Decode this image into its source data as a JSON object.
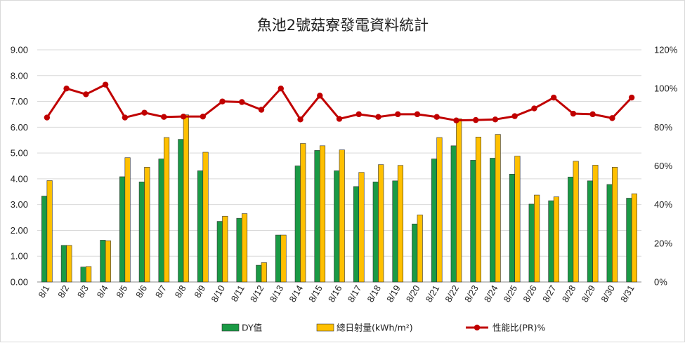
{
  "chart_data": {
    "type": "bar",
    "title": "魚池2號菇寮發電資料統計",
    "categories": [
      "8/1",
      "8/2",
      "8/3",
      "8/4",
      "8/5",
      "8/6",
      "8/7",
      "8/8",
      "8/9",
      "8/10",
      "8/11",
      "8/12",
      "8/13",
      "8/14",
      "8/15",
      "8/16",
      "8/17",
      "8/18",
      "8/19",
      "8/20",
      "8/21",
      "8/22",
      "8/23",
      "8/24",
      "8/25",
      "8/26",
      "8/27",
      "8/28",
      "8/29",
      "8/30",
      "8/31"
    ],
    "series": [
      {
        "name": "DY值",
        "type": "bar",
        "axis": "left",
        "color": "#1a9a45",
        "values": [
          3.33,
          1.42,
          0.58,
          1.62,
          4.08,
          3.88,
          4.77,
          5.53,
          4.31,
          2.35,
          2.47,
          0.65,
          1.82,
          4.5,
          5.1,
          4.31,
          3.7,
          3.88,
          3.92,
          2.25,
          4.77,
          5.28,
          4.72,
          4.8,
          4.18,
          3.02,
          3.15,
          4.07,
          3.92,
          3.78,
          3.25
        ]
      },
      {
        "name": "總日射量(kWh/m²)",
        "type": "bar",
        "axis": "left",
        "color": "#ffc000",
        "values": [
          3.93,
          1.42,
          0.6,
          1.6,
          4.82,
          4.45,
          5.6,
          6.48,
          5.03,
          2.55,
          2.65,
          0.75,
          1.82,
          5.37,
          5.28,
          5.12,
          4.25,
          4.55,
          4.52,
          2.6,
          5.6,
          6.33,
          5.62,
          5.72,
          4.88,
          3.37,
          3.3,
          4.68,
          4.53,
          4.45,
          3.42
        ]
      },
      {
        "name": "性能比(PR)%",
        "type": "line",
        "axis": "right",
        "color": "#c00000",
        "values": [
          0.85,
          1.0,
          0.97,
          1.02,
          0.85,
          0.875,
          0.853,
          0.855,
          0.855,
          0.933,
          0.93,
          0.89,
          1.0,
          0.84,
          0.963,
          0.843,
          0.867,
          0.853,
          0.867,
          0.867,
          0.853,
          0.835,
          0.837,
          0.84,
          0.857,
          0.897,
          0.953,
          0.87,
          0.867,
          0.847,
          0.953
        ]
      }
    ],
    "y_left": {
      "ylim": [
        0,
        9
      ],
      "ticks": [
        "0.00",
        "1.00",
        "2.00",
        "3.00",
        "4.00",
        "5.00",
        "6.00",
        "7.00",
        "8.00",
        "9.00"
      ]
    },
    "y_right": {
      "ylim": [
        0,
        1.2
      ],
      "ticks": [
        "0%",
        "20%",
        "40%",
        "60%",
        "80%",
        "100%",
        "120%"
      ]
    },
    "grid": true,
    "legend": "bottom"
  }
}
